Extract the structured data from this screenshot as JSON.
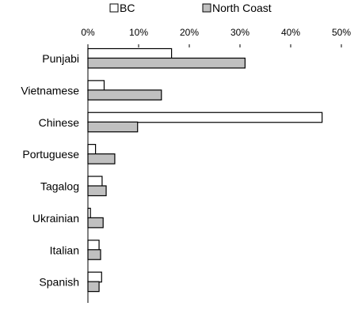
{
  "chart_data": {
    "type": "bar",
    "orientation": "horizontal",
    "title": "",
    "xlabel": "",
    "ylabel": "",
    "categories": [
      "Punjabi",
      "Vietnamese",
      "Chinese",
      "Portuguese",
      "Tagalog",
      "Ukrainian",
      "Italian",
      "Spanish"
    ],
    "series": [
      {
        "name": "BC",
        "color": "#ffffff",
        "values": [
          16.5,
          3.2,
          46.2,
          1.5,
          2.8,
          0.5,
          2.2,
          2.7
        ]
      },
      {
        "name": "North Coast",
        "color": "#c0c0c0",
        "values": [
          31.0,
          14.5,
          9.8,
          5.3,
          3.6,
          3.0,
          2.5,
          2.2
        ]
      }
    ],
    "xlim": [
      0,
      50
    ],
    "xticks": [
      "0%",
      "10%",
      "20%",
      "30%",
      "40%",
      "50%"
    ],
    "tick_values": [
      0,
      10,
      20,
      30,
      40,
      50
    ],
    "legend_position": "top",
    "grid": false
  }
}
